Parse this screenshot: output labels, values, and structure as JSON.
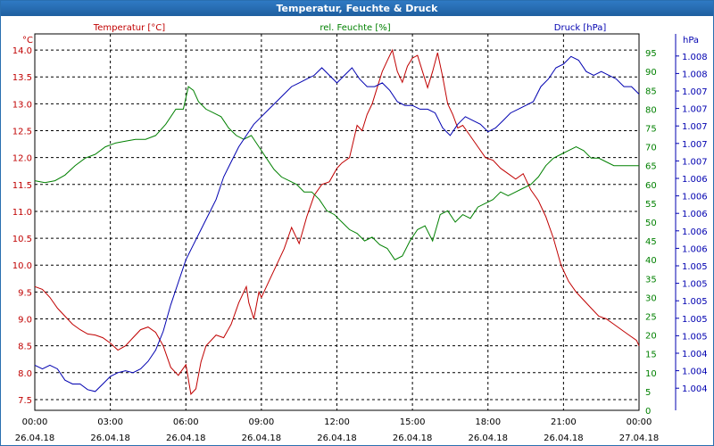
{
  "window": {
    "title": "Temperatur, Feuchte & Druck"
  },
  "colors": {
    "temperature": "#c00000",
    "humidity": "#008000",
    "pressure": "#0000b0",
    "titlebar": "#2a6fb0",
    "grid": "#000000"
  },
  "chart_data": {
    "type": "line",
    "title": "Temperatur, Feuchte & Druck",
    "grid": true,
    "x_axis": {
      "ticks": [
        {
          "time": "00:00",
          "date": "26.04.18"
        },
        {
          "time": "03:00",
          "date": "26.04.18"
        },
        {
          "time": "06:00",
          "date": "26.04.18"
        },
        {
          "time": "09:00",
          "date": "26.04.18"
        },
        {
          "time": "12:00",
          "date": "26.04.18"
        },
        {
          "time": "15:00",
          "date": "26.04.18"
        },
        {
          "time": "18:00",
          "date": "26.04.18"
        },
        {
          "time": "21:00",
          "date": "26.04.18"
        },
        {
          "time": "00:00",
          "date": "27.04.18"
        }
      ],
      "range_hours": [
        0,
        24
      ]
    },
    "axes": {
      "temperature": {
        "label": "Temperatur [°C]",
        "unit": "°C",
        "ticks": [
          "7.5",
          "8.0",
          "8.5",
          "9.0",
          "9.5",
          "10.0",
          "10.5",
          "11.0",
          "11.5",
          "12.0",
          "12.5",
          "13.0",
          "13.5",
          "14.0"
        ],
        "ylim": [
          7.3,
          14.3
        ]
      },
      "humidity": {
        "label": "rel. Feuchte [%]",
        "unit": "%",
        "ticks": [
          "0",
          "5",
          "10",
          "15",
          "20",
          "25",
          "30",
          "35",
          "40",
          "45",
          "50",
          "55",
          "60",
          "65",
          "70",
          "75",
          "80",
          "85",
          "90",
          "95"
        ],
        "ylim": [
          0,
          100
        ]
      },
      "pressure": {
        "label": "Druck [hPa]",
        "unit": "hPa",
        "ticks": [
          "1.004",
          "1.004",
          "1.004",
          "1.005",
          "1.005",
          "1.005",
          "1.005",
          "1.005",
          "1.006",
          "1.006",
          "1.006",
          "1.006",
          "1.006",
          "1.007",
          "1.007",
          "1.007",
          "1.007",
          "1.007",
          "1.008",
          "1.008"
        ],
        "ylim": [
          0,
          100
        ]
      }
    },
    "series": [
      {
        "name": "Temperatur [°C]",
        "axis": "temperature",
        "x": [
          0,
          0.3,
          0.6,
          0.9,
          1.2,
          1.5,
          1.8,
          2.1,
          2.4,
          2.7,
          3.0,
          3.3,
          3.6,
          3.9,
          4.2,
          4.5,
          4.8,
          5.1,
          5.4,
          5.7,
          6.0,
          6.2,
          6.4,
          6.6,
          6.8,
          7.0,
          7.2,
          7.5,
          7.8,
          8.1,
          8.4,
          8.5,
          8.7,
          8.9,
          9.0,
          9.3,
          9.6,
          9.9,
          10.2,
          10.5,
          10.8,
          11.1,
          11.4,
          11.7,
          12.0,
          12.2,
          12.5,
          12.8,
          13.0,
          13.2,
          13.4,
          13.6,
          13.8,
          14.0,
          14.2,
          14.4,
          14.6,
          14.8,
          15.0,
          15.2,
          15.4,
          15.6,
          15.8,
          16.0,
          16.2,
          16.4,
          16.6,
          16.8,
          17.0,
          17.3,
          17.6,
          17.9,
          18.2,
          18.5,
          18.8,
          19.1,
          19.4,
          19.7,
          20.0,
          20.3,
          20.6,
          20.9,
          21.2,
          21.5,
          21.8,
          22.1,
          22.4,
          22.7,
          23.0,
          23.3,
          23.6,
          23.9,
          24.0
        ],
        "values": [
          9.6,
          9.55,
          9.4,
          9.2,
          9.05,
          8.9,
          8.8,
          8.72,
          8.7,
          8.65,
          8.55,
          8.42,
          8.5,
          8.65,
          8.8,
          8.85,
          8.75,
          8.5,
          8.1,
          7.95,
          8.15,
          7.6,
          7.7,
          8.2,
          8.5,
          8.6,
          8.7,
          8.65,
          8.9,
          9.3,
          9.6,
          9.3,
          9.0,
          9.5,
          9.4,
          9.7,
          10.0,
          10.3,
          10.7,
          10.4,
          10.9,
          11.3,
          11.5,
          11.55,
          11.8,
          11.9,
          12.0,
          12.6,
          12.5,
          12.8,
          13.0,
          13.3,
          13.6,
          13.8,
          14.0,
          13.6,
          13.4,
          13.7,
          13.85,
          13.9,
          13.6,
          13.3,
          13.6,
          13.95,
          13.5,
          13.0,
          12.8,
          12.55,
          12.6,
          12.4,
          12.2,
          12.0,
          11.95,
          11.8,
          11.7,
          11.6,
          11.7,
          11.4,
          11.2,
          10.9,
          10.5,
          10.0,
          9.7,
          9.5,
          9.35,
          9.2,
          9.05,
          9.0,
          8.9,
          8.8,
          8.7,
          8.6,
          8.5
        ]
      },
      {
        "name": "rel. Feuchte [%]",
        "axis": "humidity",
        "x": [
          0,
          0.4,
          0.8,
          1.2,
          1.6,
          2.0,
          2.4,
          2.8,
          3.2,
          3.6,
          4.0,
          4.4,
          4.8,
          5.2,
          5.6,
          5.9,
          6.1,
          6.3,
          6.5,
          6.8,
          7.1,
          7.4,
          7.7,
          8.0,
          8.3,
          8.6,
          8.9,
          9.2,
          9.5,
          9.8,
          10.1,
          10.4,
          10.7,
          11.0,
          11.3,
          11.6,
          11.9,
          12.2,
          12.5,
          12.8,
          13.1,
          13.4,
          13.7,
          14.0,
          14.3,
          14.6,
          14.9,
          15.2,
          15.5,
          15.8,
          16.1,
          16.4,
          16.7,
          17.0,
          17.3,
          17.6,
          17.9,
          18.2,
          18.5,
          18.8,
          19.1,
          19.4,
          19.7,
          20.0,
          20.3,
          20.6,
          20.9,
          21.2,
          21.5,
          21.8,
          22.1,
          22.4,
          22.7,
          23.0,
          23.3,
          23.6,
          24.0
        ],
        "values": [
          61,
          60.5,
          61,
          62.5,
          65,
          67,
          68,
          70,
          71,
          71.5,
          72,
          72,
          73,
          76,
          80,
          80,
          86,
          85,
          82,
          80,
          79,
          78,
          75,
          73,
          72,
          73,
          70,
          67,
          64,
          62,
          61,
          60,
          58,
          58,
          56,
          53,
          52,
          50,
          48,
          47,
          45,
          46,
          44,
          43,
          40,
          41,
          45,
          48,
          49,
          45,
          52,
          53,
          50,
          52,
          51,
          54,
          55,
          56,
          58,
          57,
          58,
          59,
          60,
          62,
          65,
          67,
          68,
          69,
          70,
          69,
          67,
          67,
          66,
          65,
          65,
          65,
          65
        ]
      },
      {
        "name": "Druck [hPa]",
        "axis": "pressure",
        "x": [
          0,
          0.3,
          0.6,
          0.9,
          1.2,
          1.5,
          1.8,
          2.1,
          2.4,
          2.7,
          3.0,
          3.3,
          3.6,
          3.9,
          4.2,
          4.5,
          4.8,
          5.1,
          5.4,
          5.7,
          6.0,
          6.3,
          6.6,
          6.9,
          7.2,
          7.5,
          7.8,
          8.1,
          8.4,
          8.7,
          9.0,
          9.3,
          9.6,
          9.9,
          10.2,
          10.5,
          10.8,
          11.1,
          11.4,
          11.7,
          12.0,
          12.3,
          12.6,
          12.9,
          13.2,
          13.5,
          13.8,
          14.1,
          14.4,
          14.7,
          15.0,
          15.3,
          15.6,
          15.9,
          16.2,
          16.5,
          16.8,
          17.1,
          17.4,
          17.7,
          18.0,
          18.3,
          18.6,
          18.9,
          19.2,
          19.5,
          19.8,
          20.1,
          20.4,
          20.7,
          21.0,
          21.3,
          21.6,
          21.9,
          22.2,
          22.5,
          22.8,
          23.1,
          23.4,
          23.7,
          24.0
        ],
        "values": [
          12,
          11,
          12,
          11,
          8,
          7,
          7,
          5.5,
          5,
          7,
          9,
          10,
          10.5,
          10,
          11,
          13,
          16,
          21,
          28,
          34,
          40,
          44,
          48,
          52,
          56,
          62,
          66,
          70,
          73,
          76,
          78,
          80,
          82,
          84,
          86,
          87,
          88,
          89,
          91,
          89,
          87,
          89,
          91,
          88,
          86,
          86,
          87,
          85,
          82,
          81,
          81,
          80,
          80,
          79,
          75,
          73,
          76,
          78,
          77,
          76,
          74,
          75,
          77,
          79,
          80,
          81,
          82,
          86,
          88,
          91,
          92,
          94,
          93,
          90,
          89,
          90,
          89,
          88,
          86,
          86,
          84
        ]
      }
    ]
  }
}
